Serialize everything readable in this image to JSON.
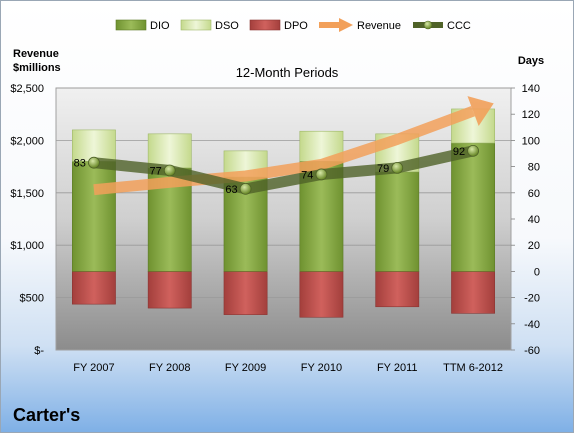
{
  "chart_data": {
    "type": "bar",
    "title": "12-Month Periods",
    "company": "Carter's",
    "y_left_label": [
      "Revenue",
      "$millions"
    ],
    "y_right_label": "Days",
    "categories": [
      "FY 2007",
      "FY 2008",
      "FY 2009",
      "FY 2010",
      "FY 2011",
      "TTM 6-2012"
    ],
    "ylim_left": [
      0,
      2500
    ],
    "ylim_right": [
      -60,
      140
    ],
    "left_ticks": [
      "$-",
      "$500",
      "$1,000",
      "$1,500",
      "$2,000",
      "$2,500"
    ],
    "left_tick_values": [
      0,
      500,
      1000,
      1500,
      2000,
      2500
    ],
    "right_ticks": [
      "-60",
      "-40",
      "-20",
      "0",
      "20",
      "40",
      "60",
      "80",
      "100",
      "120",
      "140"
    ],
    "right_tick_values": [
      -60,
      -40,
      -20,
      0,
      20,
      40,
      60,
      80,
      100,
      120,
      140
    ],
    "legend": [
      "DIO",
      "DSO",
      "DPO",
      "Revenue",
      "CCC"
    ],
    "legend_position": "top",
    "series": [
      {
        "name": "DIO",
        "axis": "right",
        "kind": "stacked-bar",
        "color": "#7fa03a",
        "values": [
          84,
          79,
          72,
          84,
          76,
          98
        ]
      },
      {
        "name": "DSO",
        "axis": "right",
        "kind": "stacked-bar",
        "color": "#d4e6a6",
        "values": [
          24,
          26,
          20,
          23,
          29,
          26
        ]
      },
      {
        "name": "DPO",
        "axis": "right",
        "kind": "negative-bar",
        "color": "#c0504d",
        "values": [
          -25,
          -28,
          -33,
          -35,
          -27,
          -32
        ]
      },
      {
        "name": "Revenue",
        "axis": "left",
        "kind": "arrow-line",
        "color": "#f2a05a",
        "values": [
          1530,
          1600,
          1660,
          1770,
          2010,
          2280
        ]
      },
      {
        "name": "CCC",
        "axis": "right",
        "kind": "line",
        "color": "#4f6228",
        "values": [
          83,
          77,
          63,
          74,
          79,
          92
        ],
        "labels": [
          "83",
          "77",
          "63",
          "74",
          "79",
          "92"
        ]
      }
    ]
  }
}
